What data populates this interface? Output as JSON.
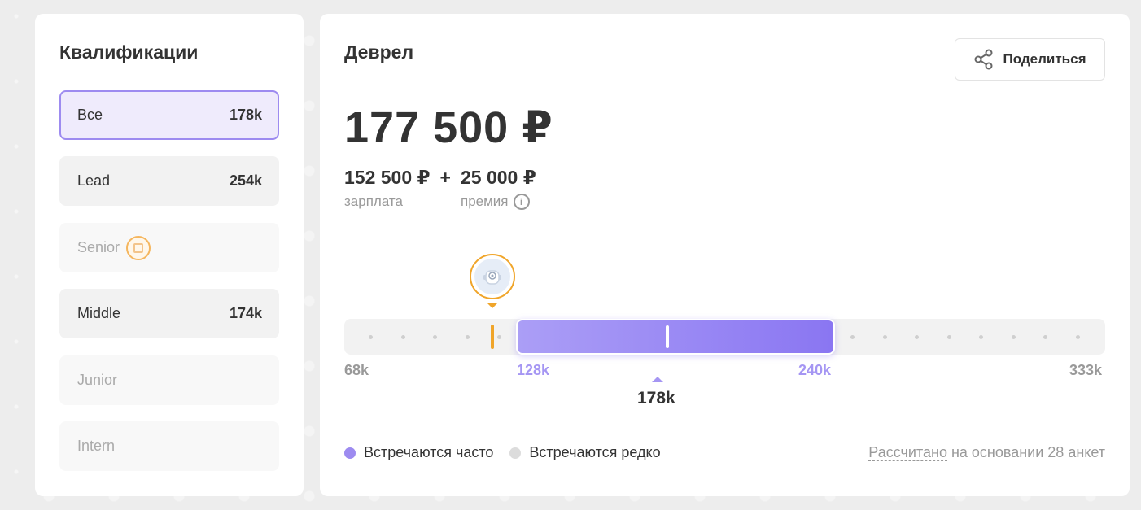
{
  "qualifications": {
    "title": "Квалификации",
    "items": [
      {
        "label": "Все",
        "count": "178k"
      },
      {
        "label": "Lead",
        "count": "254k"
      },
      {
        "label": "Senior",
        "count": ""
      },
      {
        "label": "Middle",
        "count": "174k"
      },
      {
        "label": "Junior",
        "count": ""
      },
      {
        "label": "Intern",
        "count": ""
      }
    ]
  },
  "main": {
    "role": "Деврел",
    "share_label": "Поделиться",
    "total": "177 500 ₽",
    "salary_amount": "152 500 ₽",
    "plus": "+",
    "bonus_amount": "25 000 ₽",
    "salary_label": "зарплата",
    "bonus_label": "премия",
    "info_glyph": "i"
  },
  "range": {
    "min": "68k",
    "low": "128k",
    "high": "240k",
    "max": "333k",
    "median": "178k",
    "user_marker_icon": "robot-avatar-icon"
  },
  "legend": {
    "frequent": "Встречаются часто",
    "rare": "Встречаются редко",
    "frequent_color": "#9d8bf0",
    "rare_color": "#dcdcdc"
  },
  "footer": {
    "based_link": "Рассчитано",
    "based_rest": " на основании 28 анкет"
  }
}
